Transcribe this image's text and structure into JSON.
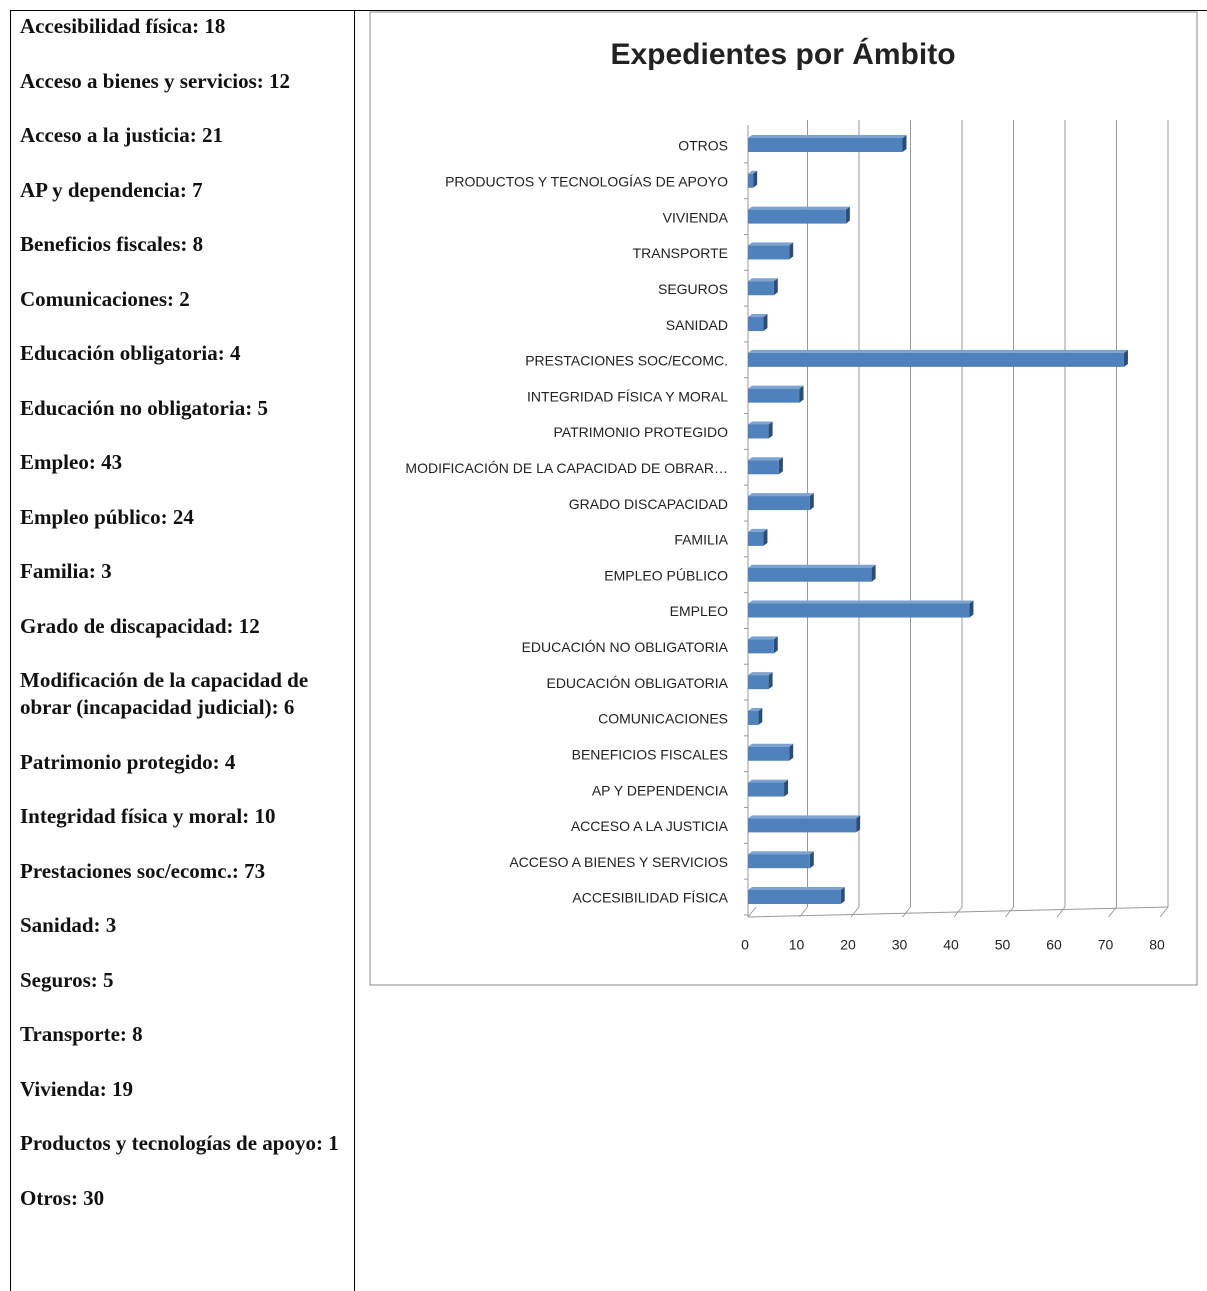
{
  "list": {
    "items": [
      "Accesibilidad física: 18",
      "Acceso a bienes y servicios: 12",
      "Acceso a la justicia: 21",
      "AP y dependencia: 7",
      "Beneficios fiscales: 8",
      "Comunicaciones: 2",
      "Educación obligatoria: 4",
      "Educación no obligatoria: 5",
      "Empleo: 43",
      "Empleo público: 24",
      "Familia: 3",
      "Grado de discapacidad: 12",
      "Modificación de la capacidad de obrar (incapacidad judicial):   6",
      "Patrimonio protegido: 4",
      "Integridad física y moral: 10",
      "Prestaciones soc/ecomc.: 73",
      "Sanidad: 3",
      "Seguros: 5",
      "Transporte: 8",
      "Vivienda: 19",
      "Productos y tecnologías de apoyo: 1",
      "Otros: 30"
    ]
  },
  "chart_data": {
    "type": "barh",
    "title": "Expedientes por Ámbito",
    "categories": [
      "ACCESIBILIDAD FÍSICA",
      "ACCESO A BIENES Y SERVICIOS",
      "ACCESO A LA JUSTICIA",
      "AP Y DEPENDENCIA",
      "BENEFICIOS FISCALES",
      "COMUNICACIONES",
      "EDUCACIÓN OBLIGATORIA",
      "EDUCACIÓN NO OBLIGATORIA",
      "EMPLEO",
      "EMPLEO PÚBLICO",
      "FAMILIA",
      "GRADO DISCAPACIDAD",
      "MODIFICACIÓN DE LA CAPACIDAD DE OBRAR…",
      "PATRIMONIO PROTEGIDO",
      "INTEGRIDAD FÍSICA Y MORAL",
      "PRESTACIONES SOC/ECOMC.",
      "SANIDAD",
      "SEGUROS",
      "TRANSPORTE",
      "VIVIENDA",
      "PRODUCTOS Y TECNOLOGÍAS DE APOYO",
      "OTROS"
    ],
    "values": [
      18,
      12,
      21,
      7,
      8,
      2,
      4,
      5,
      43,
      24,
      3,
      12,
      6,
      4,
      10,
      73,
      3,
      5,
      8,
      19,
      1,
      30
    ],
    "color": "#4f81bd",
    "xlim": [
      0,
      80
    ],
    "xticks": [
      0,
      10,
      20,
      30,
      40,
      50,
      60,
      70,
      80
    ],
    "grid": true
  }
}
